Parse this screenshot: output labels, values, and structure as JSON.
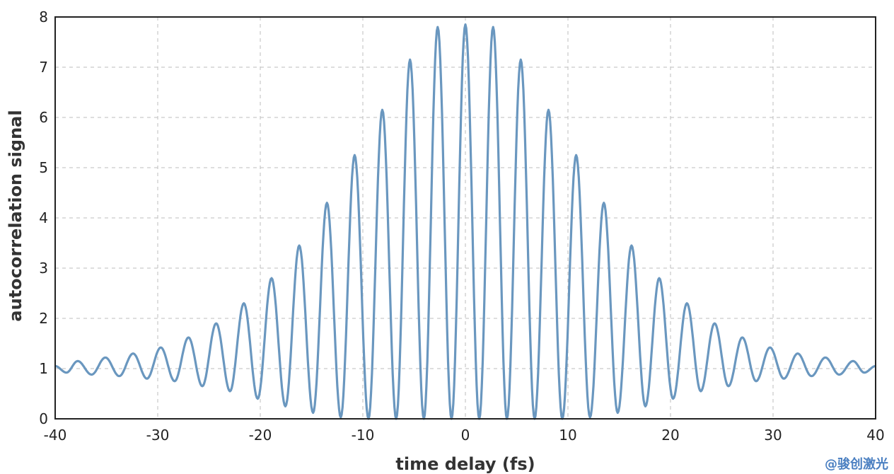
{
  "watermark": "@骏创激光",
  "chart_data": {
    "type": "line",
    "title": "",
    "xlabel": "time delay (fs)",
    "ylabel": "autocorrelation signal",
    "xlim": [
      -40,
      40
    ],
    "ylim": [
      0,
      8
    ],
    "xticks": [
      -40,
      -30,
      -20,
      -10,
      0,
      10,
      20,
      30,
      40
    ],
    "yticks": [
      0,
      1,
      2,
      3,
      4,
      5,
      6,
      7,
      8
    ],
    "xtick_labels": [
      "-40",
      "-30",
      "-20",
      "-10",
      "0",
      "10",
      "20",
      "30",
      "40"
    ],
    "ytick_labels": [
      "0",
      "1",
      "2",
      "3",
      "4",
      "5",
      "6",
      "7",
      "8"
    ],
    "grid": true,
    "line_color": "#6a97bf",
    "series": [
      {
        "x": [
          -40,
          -37.8,
          -35.1,
          -32.4,
          -29.7,
          -27.0,
          -24.3,
          -21.6,
          -18.9,
          -16.2,
          -13.5,
          -10.8,
          -8.1,
          -5.4,
          -2.7,
          0,
          2.7,
          5.4,
          8.1,
          10.8,
          13.5,
          16.2,
          18.9,
          21.6,
          24.3,
          27.0,
          29.7,
          32.4,
          35.1,
          37.8,
          40
        ],
        "peaks": [
          1.05,
          1.15,
          1.22,
          1.3,
          1.42,
          1.62,
          1.9,
          2.3,
          2.8,
          3.45,
          4.3,
          5.25,
          6.15,
          7.15,
          7.8,
          7.85,
          7.8,
          7.15,
          6.15,
          5.25,
          4.3,
          3.45,
          2.8,
          2.3,
          1.9,
          1.62,
          1.42,
          1.3,
          1.22,
          1.15,
          1.05
        ],
        "valleys": [
          0.92,
          0.88,
          0.85,
          0.8,
          0.75,
          0.65,
          0.55,
          0.4,
          0.25,
          0.12,
          0.03,
          0,
          0,
          0,
          0,
          0,
          0,
          0,
          0,
          0,
          0.03,
          0.12,
          0.25,
          0.4,
          0.55,
          0.65,
          0.75,
          0.8,
          0.85,
          0.88,
          0.92
        ]
      }
    ]
  }
}
